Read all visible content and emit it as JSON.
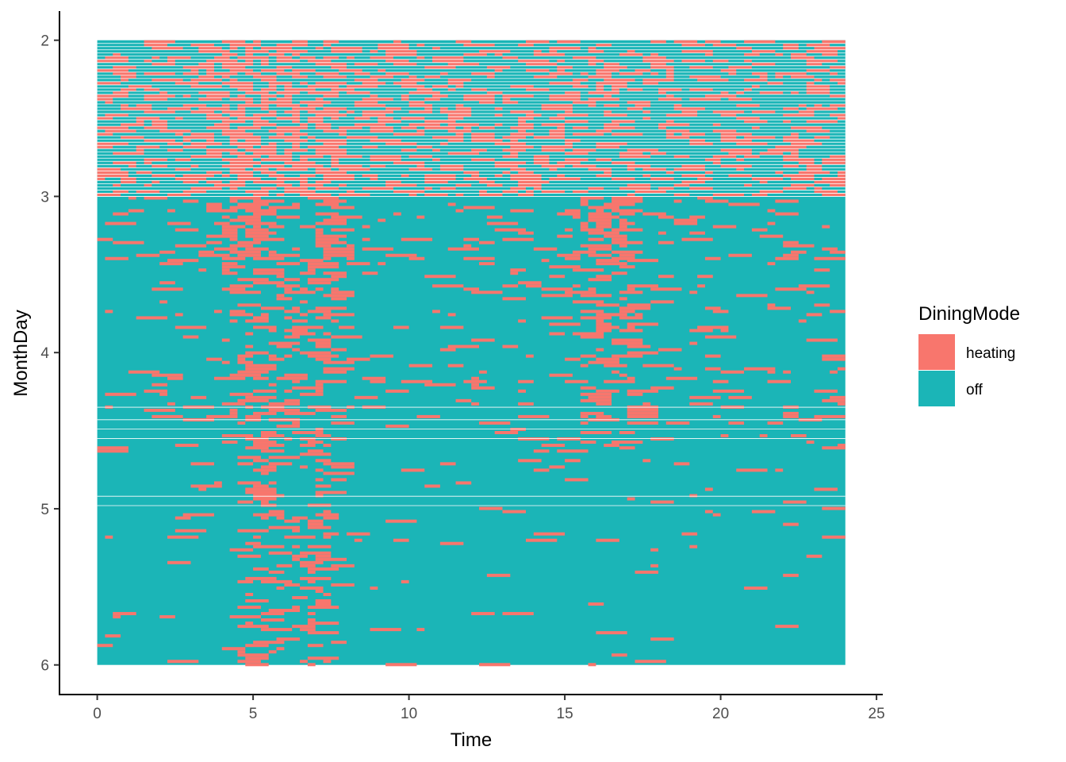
{
  "chart_data": {
    "type": "heatmap",
    "xlabel": "Time",
    "ylabel": "MonthDay",
    "xlim": [
      0,
      25
    ],
    "ylim": [
      2,
      6
    ],
    "y_reversed": true,
    "x_ticks": [
      "0",
      "5",
      "10",
      "15",
      "20",
      "25"
    ],
    "y_ticks": [
      "2",
      "3",
      "4",
      "5",
      "6"
    ],
    "grid": false,
    "legend": {
      "title": "DiningMode",
      "position": "right",
      "entries": [
        {
          "label": "heating",
          "color": "#F8766D"
        },
        {
          "label": "off",
          "color": "#1BB5B7"
        }
      ]
    },
    "tile_width_hours": 0.25,
    "data_extent": {
      "time": [
        0,
        24
      ],
      "monthday": [
        2,
        6
      ]
    },
    "heating_intensity_profile": {
      "description": "approximate share of heating tiles by hour band and date band",
      "bands": [
        {
          "monthday": [
            2.0,
            3.0
          ],
          "baseline_share": 0.25,
          "peak_hours": [
            [
              4,
              7.5
            ]
          ],
          "peak_share": 0.55
        },
        {
          "monthday": [
            3.0,
            3.4
          ],
          "baseline_share": 0.06,
          "peak_hours": [
            [
              4.0,
              5.2
            ],
            [
              6.8,
              7.5
            ],
            [
              15.5,
              16.8
            ]
          ],
          "peak_share": 0.5
        },
        {
          "monthday": [
            3.4,
            4.6
          ],
          "baseline_share": 0.04,
          "peak_hours": [
            [
              4.0,
              7.5
            ],
            [
              15.5,
              17.0
            ]
          ],
          "peak_share": 0.25
        },
        {
          "monthday": [
            4.6,
            6.0
          ],
          "baseline_share": 0.015,
          "peak_hours": [
            [
              4.5,
              7.5
            ]
          ],
          "peak_share": 0.18
        }
      ]
    }
  }
}
